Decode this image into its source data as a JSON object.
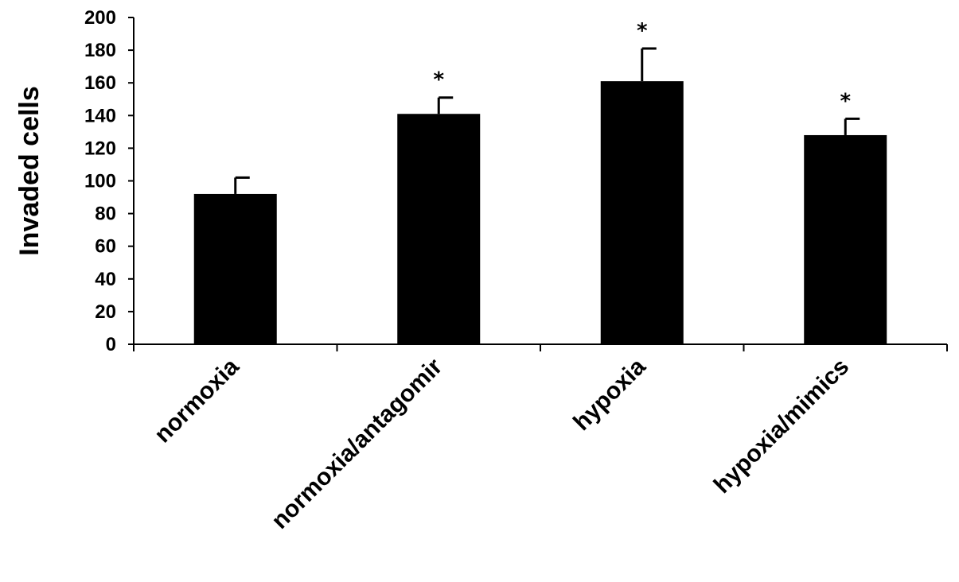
{
  "chart_data": {
    "type": "bar",
    "title": "",
    "xlabel": "",
    "ylabel": "Invaded cells",
    "ylim": [
      0,
      200
    ],
    "yticks": [
      0,
      20,
      40,
      60,
      80,
      100,
      120,
      140,
      160,
      180,
      200
    ],
    "categories": [
      "normoxia",
      "normoxia/antagomir",
      "hypoxia",
      "hypoxia/mimics"
    ],
    "values": [
      92,
      141,
      161,
      128
    ],
    "errors": [
      10,
      10,
      20,
      10
    ],
    "significance": [
      "",
      "*",
      "*",
      "*"
    ],
    "bar_color": "#000000",
    "grid": false
  }
}
